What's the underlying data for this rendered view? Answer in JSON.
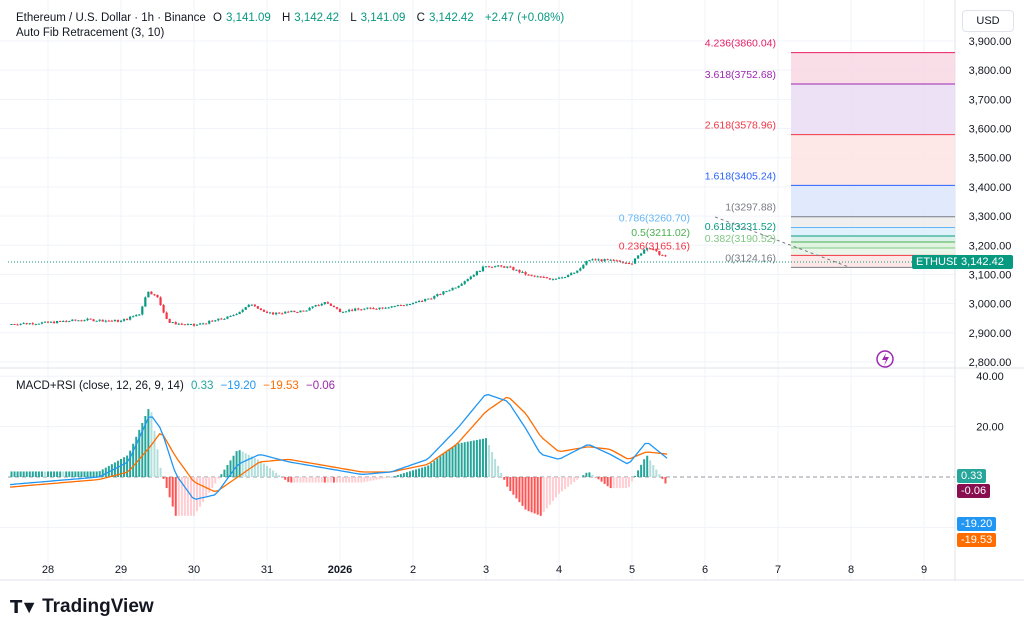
{
  "header": {
    "symbol": "Ethereum / U.S. Dollar · 1h · Binance",
    "open_label": "O",
    "open": "3,141.09",
    "high_label": "H",
    "high": "3,142.42",
    "low_label": "L",
    "low": "3,141.09",
    "close_label": "C",
    "close": "3,142.42",
    "change": "+2.47 (+0.08%)",
    "indicator": "Auto Fib Retracement (3, 10)"
  },
  "currency": "USD",
  "price_tag": {
    "symbol": "ETHUSD",
    "price": "3,142.42"
  },
  "macd_header": {
    "name": "MACD+RSI (close, 12, 26, 9, 14)",
    "hist": "0.33",
    "macd": "−19.20",
    "signal": "−19.53",
    "extra": "−0.06"
  },
  "macd_tags": {
    "hist": "0.33",
    "extra": "-0.06",
    "macd": "-19.20",
    "signal": "-19.53"
  },
  "brand": "TradingView",
  "colors": {
    "up": "#089981",
    "down": "#f23645",
    "macd": "#2196f3",
    "signal": "#ff6d00",
    "purple": "#9c27b0"
  },
  "chart_data": {
    "type": "candlestick",
    "title": "Ethereum / U.S. Dollar · 1h · Binance",
    "x_unit": "days since Dec 28 00:00",
    "x_ticks": [
      "28",
      "29",
      "30",
      "31",
      "2026",
      "2",
      "3",
      "4",
      "5",
      "6",
      "7",
      "8",
      "9"
    ],
    "price_axis": {
      "ticks": [
        "3,900.00",
        "3,800.00",
        "3,700.00",
        "3,600.00",
        "3,500.00",
        "3,400.00",
        "3,300.00",
        "3,200.00",
        "3,100.00",
        "3,000.00",
        "2,900.00",
        "2,800.00"
      ],
      "range": [
        2800,
        3900
      ]
    },
    "price_path": {
      "day": [
        -0.52,
        0,
        0.5,
        1,
        1.25,
        1.37,
        1.5,
        1.65,
        2,
        2.5,
        2.8,
        3,
        3.5,
        3.8,
        4,
        4.5,
        5,
        5.3,
        5.6,
        6,
        6.3,
        6.6,
        6.9,
        7.1,
        7.25,
        7.4,
        7.55,
        7.8,
        8.0,
        8.2,
        8.45,
        8.6,
        8.8,
        8.95,
        9.2,
        9.4,
        9.6,
        9.75,
        9.9,
        10,
        10.2,
        10.5,
        10.6,
        10.8,
        11,
        11.1,
        11.2,
        11.35,
        11.5,
        11.7,
        11.85,
        12,
        12.15,
        12.35,
        12.5
      ],
      "close": [
        2930,
        2935,
        2945,
        2940,
        2965,
        3045,
        3020,
        2935,
        2925,
        2955,
        3000,
        2965,
        2975,
        3005,
        2975,
        2985,
        3000,
        3025,
        3060,
        3130,
        3125,
        3095,
        3085,
        3095,
        3110,
        3150,
        3150,
        3145,
        3140,
        3195,
        3160,
        3150,
        3160,
        3175,
        3210,
        3240,
        3250,
        3210,
        3230,
        3205,
        3290,
        3260,
        3250,
        3230,
        3215,
        3210,
        3180,
        3170,
        3140,
        3135,
        3150,
        3170,
        3160,
        3142,
        3142
      ]
    },
    "fib_levels": [
      {
        "ratio": "4.236",
        "price": 3860.04,
        "label": "4.236(3860.04)",
        "color": "#e91e63"
      },
      {
        "ratio": "3.618",
        "price": 3752.68,
        "label": "3.618(3752.68)",
        "color": "#9c27b0"
      },
      {
        "ratio": "2.618",
        "price": 3578.96,
        "label": "2.618(3578.96)",
        "color": "#f23645"
      },
      {
        "ratio": "1.618",
        "price": 3405.24,
        "label": "1.618(3405.24)",
        "color": "#2962ff"
      },
      {
        "ratio": "1",
        "price": 3297.88,
        "label": "1(3297.88)",
        "color": "#787b86"
      },
      {
        "ratio": "0.786",
        "price": 3260.7,
        "label": "0.786(3260.70)",
        "color": "#64b5f6"
      },
      {
        "ratio": "0.618",
        "price": 3231.52,
        "label": "0.618(3231.52)",
        "color": "#089981"
      },
      {
        "ratio": "0.5",
        "price": 3211.02,
        "label": "0.5(3211.02)",
        "color": "#4caf50"
      },
      {
        "ratio": "0.382",
        "price": 3190.52,
        "label": "0.382(3190.52)",
        "color": "#81c784"
      },
      {
        "ratio": "0.236",
        "price": 3165.16,
        "label": "0.236(3165.16)",
        "color": "#f23645"
      },
      {
        "ratio": "0",
        "price": 3124.16,
        "label": "0(3124.16)",
        "color": "#787b86"
      }
    ],
    "macd_axis": {
      "ticks": [
        "40.00",
        "20.00"
      ],
      "range": [
        -36,
        40
      ]
    },
    "macd": {
      "day": [
        -0.52,
        0.7,
        1.1,
        1.4,
        1.55,
        1.75,
        2.0,
        2.3,
        2.6,
        2.9,
        3.3,
        3.7,
        4.3,
        4.7,
        5.2,
        5.6,
        6.0,
        6.3,
        6.55,
        6.75,
        7.0,
        7.4,
        7.7,
        7.95,
        8.2,
        8.5,
        8.8,
        9.0,
        9.2,
        9.4,
        9.7,
        9.9,
        10.0,
        10.2,
        10.5,
        10.75,
        10.95,
        11.1,
        11.25,
        11.45,
        11.7,
        11.95,
        12.15
      ],
      "macd": [
        -3,
        0,
        6,
        25,
        19,
        1,
        -9,
        -7,
        5,
        9,
        6,
        4,
        1,
        2,
        7,
        19,
        33,
        30,
        19,
        9,
        7,
        13,
        9,
        5,
        14,
        7,
        23,
        20,
        17,
        13,
        11,
        15,
        14,
        7,
        -5,
        -19,
        -25,
        -22,
        -20,
        -19,
        -19,
        -19,
        -19
      ],
      "signal": [
        -4,
        -1,
        2,
        12,
        18,
        8,
        -2,
        -6,
        0,
        6,
        7,
        5,
        2,
        2,
        5,
        13,
        26,
        32,
        25,
        16,
        10,
        12,
        11,
        7,
        10,
        9,
        16,
        19,
        18,
        15,
        13,
        14,
        14,
        10,
        3,
        -8,
        -18,
        -22,
        -21,
        -20,
        -19.5,
        -19.5,
        -19.5
      ]
    }
  }
}
